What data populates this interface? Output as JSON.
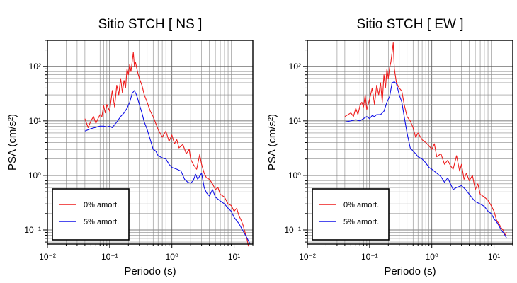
{
  "chart_data": [
    {
      "type": "line",
      "title": "Sitio STCH [ NS ]",
      "xlabel": "Periodo (s)",
      "ylabel": "PSA (cm/s²)",
      "xscale": "log",
      "yscale": "log",
      "xlim": [
        0.01,
        20
      ],
      "ylim": [
        0.055,
        300
      ],
      "grid": true,
      "legend_position": "bottom-left",
      "xticks": [
        {
          "value": 0.01,
          "label": "10⁻²"
        },
        {
          "value": 0.1,
          "label": "10⁻¹"
        },
        {
          "value": 1,
          "label": "10⁰"
        },
        {
          "value": 10,
          "label": "10¹"
        }
      ],
      "yticks": [
        {
          "value": 0.1,
          "label": "10⁻¹"
        },
        {
          "value": 1,
          "label": "10⁰"
        },
        {
          "value": 10,
          "label": "10¹"
        },
        {
          "value": 100,
          "label": "10²"
        }
      ],
      "series": [
        {
          "name": "0% amort.",
          "color": "#ee1c1c",
          "x": [
            0.04,
            0.045,
            0.05,
            0.055,
            0.06,
            0.065,
            0.07,
            0.075,
            0.08,
            0.085,
            0.09,
            0.1,
            0.11,
            0.12,
            0.13,
            0.14,
            0.15,
            0.16,
            0.17,
            0.18,
            0.19,
            0.2,
            0.21,
            0.22,
            0.24,
            0.25,
            0.26,
            0.28,
            0.3,
            0.33,
            0.36,
            0.4,
            0.45,
            0.5,
            0.55,
            0.6,
            0.7,
            0.8,
            0.9,
            1.0,
            1.1,
            1.2,
            1.3,
            1.5,
            1.7,
            1.9,
            2.0,
            2.2,
            2.5,
            2.8,
            3.0,
            3.3,
            3.6,
            4.0,
            4.5,
            5.0,
            5.5,
            6.0,
            7.0,
            8.0,
            9.0,
            10.0,
            11.0,
            12.0,
            13.0,
            14.0,
            15.0,
            16.0,
            17.0
          ],
          "y": [
            11,
            7.5,
            10,
            12,
            9,
            11,
            13,
            12,
            19,
            14,
            20,
            15,
            36,
            18,
            45,
            30,
            60,
            33,
            55,
            40,
            90,
            70,
            110,
            80,
            180,
            100,
            120,
            80,
            60,
            45,
            30,
            22,
            15,
            12,
            9,
            7,
            5,
            6.5,
            4.2,
            5.5,
            3.8,
            4.5,
            3.2,
            3.7,
            2.5,
            3,
            2,
            1.6,
            1.3,
            2.4,
            1.6,
            1.1,
            0.9,
            0.85,
            0.7,
            0.55,
            0.6,
            0.45,
            0.4,
            0.3,
            0.28,
            0.22,
            0.25,
            0.18,
            0.15,
            0.12,
            0.09,
            0.07,
            0.05
          ]
        },
        {
          "name": "5% amort.",
          "color": "#1010e8",
          "x": [
            0.04,
            0.05,
            0.06,
            0.07,
            0.08,
            0.09,
            0.1,
            0.11,
            0.12,
            0.13,
            0.15,
            0.17,
            0.19,
            0.21,
            0.23,
            0.25,
            0.27,
            0.3,
            0.33,
            0.36,
            0.4,
            0.45,
            0.5,
            0.55,
            0.6,
            0.7,
            0.8,
            0.9,
            1.0,
            1.2,
            1.4,
            1.6,
            1.8,
            2.0,
            2.2,
            2.4,
            2.6,
            3.0,
            3.3,
            3.6,
            4.0,
            4.5,
            5.0,
            6.0,
            7.0,
            8.0,
            9.0,
            10,
            12,
            14,
            16,
            18
          ],
          "y": [
            6.5,
            7.2,
            7.6,
            8,
            8,
            7.7,
            8,
            7.5,
            8.5,
            9.5,
            12,
            14,
            17,
            22,
            32,
            36,
            30,
            20,
            14,
            9.5,
            7,
            4.5,
            3,
            2.8,
            2.3,
            2.1,
            2,
            1.6,
            1.4,
            1.3,
            1.2,
            0.85,
            0.75,
            0.72,
            0.8,
            1.05,
            0.85,
            1.1,
            0.6,
            0.48,
            0.42,
            0.55,
            0.4,
            0.34,
            0.3,
            0.25,
            0.22,
            0.17,
            0.13,
            0.095,
            0.072,
            0.056
          ]
        }
      ]
    },
    {
      "type": "line",
      "title": "Sitio STCH [ EW ]",
      "xlabel": "Periodo (s)",
      "ylabel": "PSA (cm/s²)",
      "xscale": "log",
      "yscale": "log",
      "xlim": [
        0.01,
        20
      ],
      "ylim": [
        0.055,
        300
      ],
      "grid": true,
      "legend_position": "bottom-left",
      "xticks": [
        {
          "value": 0.01,
          "label": "10⁻²"
        },
        {
          "value": 0.1,
          "label": "10⁻¹"
        },
        {
          "value": 1,
          "label": "10⁰"
        },
        {
          "value": 10,
          "label": "10¹"
        }
      ],
      "yticks": [
        {
          "value": 0.1,
          "label": "10⁻¹"
        },
        {
          "value": 1,
          "label": "10⁰"
        },
        {
          "value": 10,
          "label": "10¹"
        },
        {
          "value": 100,
          "label": "10²"
        }
      ],
      "series": [
        {
          "name": "0% amort.",
          "color": "#ee1c1c",
          "x": [
            0.04,
            0.045,
            0.05,
            0.055,
            0.06,
            0.065,
            0.07,
            0.075,
            0.08,
            0.085,
            0.09,
            0.1,
            0.11,
            0.12,
            0.13,
            0.14,
            0.15,
            0.16,
            0.17,
            0.18,
            0.19,
            0.2,
            0.21,
            0.22,
            0.24,
            0.25,
            0.27,
            0.3,
            0.33,
            0.36,
            0.4,
            0.45,
            0.5,
            0.55,
            0.6,
            0.7,
            0.8,
            0.9,
            1.0,
            1.1,
            1.2,
            1.4,
            1.6,
            1.8,
            2.0,
            2.2,
            2.5,
            2.8,
            3.0,
            3.3,
            3.6,
            4.0,
            4.5,
            5.0,
            5.5,
            6.0,
            7.0,
            8.0,
            9.0,
            10,
            11,
            12,
            13,
            14,
            15,
            16
          ],
          "y": [
            12,
            13,
            14,
            12,
            17,
            13,
            19,
            22,
            18,
            30,
            16,
            25,
            40,
            20,
            45,
            30,
            50,
            22,
            70,
            40,
            90,
            60,
            95,
            120,
            270,
            90,
            50,
            40,
            35,
            20,
            12,
            10,
            7.5,
            5,
            6,
            4.5,
            4,
            3.5,
            3,
            3.8,
            2.2,
            2.5,
            1.6,
            1.9,
            1.5,
            1.3,
            2.3,
            1.2,
            1.6,
            0.85,
            1.1,
            0.8,
            1,
            0.55,
            0.7,
            0.45,
            0.4,
            0.35,
            0.28,
            0.22,
            0.15,
            0.13,
            0.11,
            0.1,
            0.08,
            0.09
          ]
        },
        {
          "name": "5% amort.",
          "color": "#1010e8",
          "x": [
            0.04,
            0.05,
            0.06,
            0.07,
            0.08,
            0.09,
            0.1,
            0.11,
            0.12,
            0.13,
            0.15,
            0.17,
            0.19,
            0.21,
            0.23,
            0.25,
            0.27,
            0.3,
            0.33,
            0.36,
            0.4,
            0.45,
            0.5,
            0.55,
            0.6,
            0.7,
            0.8,
            0.9,
            1.0,
            1.2,
            1.4,
            1.6,
            1.8,
            2.0,
            2.2,
            2.5,
            3.0,
            3.5,
            4.0,
            4.5,
            5.0,
            6.0,
            7.0,
            8.0,
            9.0,
            10,
            11,
            12,
            13,
            14,
            15,
            16
          ],
          "y": [
            9.5,
            10,
            10.5,
            10,
            11,
            12,
            11,
            12.5,
            12,
            13,
            13,
            15,
            22,
            28,
            50,
            52,
            48,
            30,
            22,
            12,
            6,
            3.2,
            2.8,
            2.5,
            2.2,
            2,
            1.7,
            1.4,
            1.3,
            1.1,
            0.95,
            0.75,
            0.9,
            0.7,
            0.55,
            0.6,
            0.65,
            0.55,
            0.45,
            0.38,
            0.33,
            0.3,
            0.27,
            0.22,
            0.2,
            0.16,
            0.14,
            0.12,
            0.1,
            0.09,
            0.08,
            0.07
          ]
        }
      ]
    }
  ]
}
